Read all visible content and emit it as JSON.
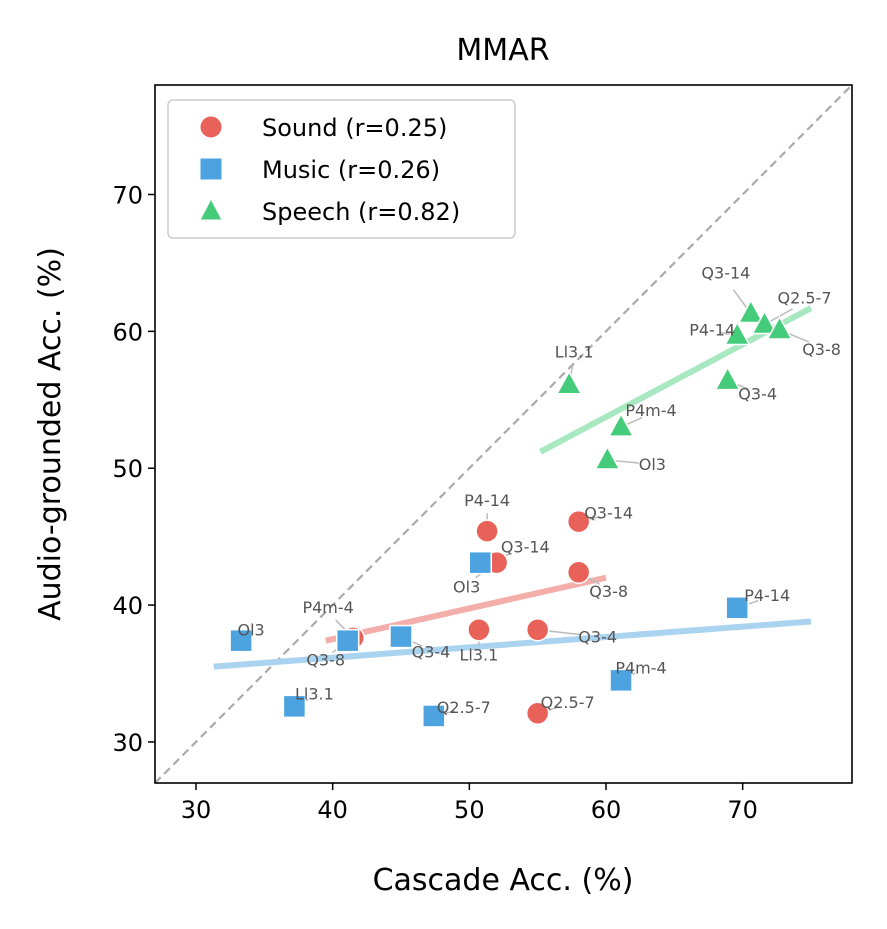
{
  "chart_data": {
    "type": "scatter",
    "title": "MMAR",
    "xlabel": "Cascade Acc. (%)",
    "ylabel": "Audio-grounded Acc. (%)",
    "xlim": [
      27,
      78
    ],
    "ylim": [
      27,
      78
    ],
    "xticks": [
      30,
      40,
      50,
      60,
      70
    ],
    "yticks": [
      30,
      40,
      50,
      60,
      70
    ],
    "grid": false,
    "legend_position": "top-left",
    "diagonal_reference": "y = x (dashed gray)",
    "series": [
      {
        "name": "Sound (r=0.25)",
        "marker": "circle",
        "color": "#e8625a",
        "fit_color": "#f4aeaa",
        "fit": {
          "x": [
            39.5,
            60.0
          ],
          "y": [
            37.4,
            42.0
          ]
        },
        "points": [
          {
            "label": "P4-14",
            "x": 51.3,
            "y": 45.4
          },
          {
            "label": "Ol3",
            "x": 52.0,
            "y": 43.1
          },
          {
            "label": "Q3-14",
            "x": 58.0,
            "y": 46.1
          },
          {
            "label": "Q3-8",
            "x": 58.0,
            "y": 42.4
          },
          {
            "label": "P4m-4",
            "x": 41.5,
            "y": 37.6
          },
          {
            "label": "Ll3.1",
            "x": 50.7,
            "y": 38.2
          },
          {
            "label": "Q3-4",
            "x": 55.0,
            "y": 38.2
          },
          {
            "label": "Q2.5-7",
            "x": 55.0,
            "y": 32.1
          }
        ]
      },
      {
        "name": "Music (r=0.26)",
        "marker": "square",
        "color": "#4ca3e0",
        "fit_color": "#aad3f0",
        "fit": {
          "x": [
            31.3,
            75.0
          ],
          "y": [
            35.5,
            38.8
          ]
        },
        "points": [
          {
            "label": "Ol3",
            "x": 33.3,
            "y": 37.4
          },
          {
            "label": "Q3-8",
            "x": 41.1,
            "y": 37.4
          },
          {
            "label": "Q3-4",
            "x": 45.0,
            "y": 37.7
          },
          {
            "label": "Ll3.1",
            "x": 37.2,
            "y": 32.6
          },
          {
            "label": "Q2.5-7",
            "x": 47.4,
            "y": 31.9
          },
          {
            "label": "P4m-4",
            "x": 61.1,
            "y": 34.5
          },
          {
            "label": "P4-14",
            "x": 69.6,
            "y": 39.8
          },
          {
            "label": "Q3-14",
            "x": 50.8,
            "y": 43.1
          }
        ]
      },
      {
        "name": "Speech (r=0.82)",
        "marker": "triangle",
        "color": "#45cc7a",
        "fit_color": "#a8e8c0",
        "fit": {
          "x": [
            55.2,
            75.0
          ],
          "y": [
            51.2,
            61.7
          ]
        },
        "points": [
          {
            "label": "Ll3.1",
            "x": 57.3,
            "y": 56.1
          },
          {
            "label": "P4m-4",
            "x": 61.1,
            "y": 53.0
          },
          {
            "label": "Ol3",
            "x": 60.1,
            "y": 50.6
          },
          {
            "label": "Q3-4",
            "x": 68.9,
            "y": 56.4
          },
          {
            "label": "P4-14",
            "x": 69.6,
            "y": 59.7
          },
          {
            "label": "Q3-14",
            "x": 70.6,
            "y": 61.3
          },
          {
            "label": "Q2.5-7",
            "x": 71.6,
            "y": 60.5
          },
          {
            "label": "Q3-8",
            "x": 72.7,
            "y": 60.1
          }
        ]
      }
    ]
  }
}
